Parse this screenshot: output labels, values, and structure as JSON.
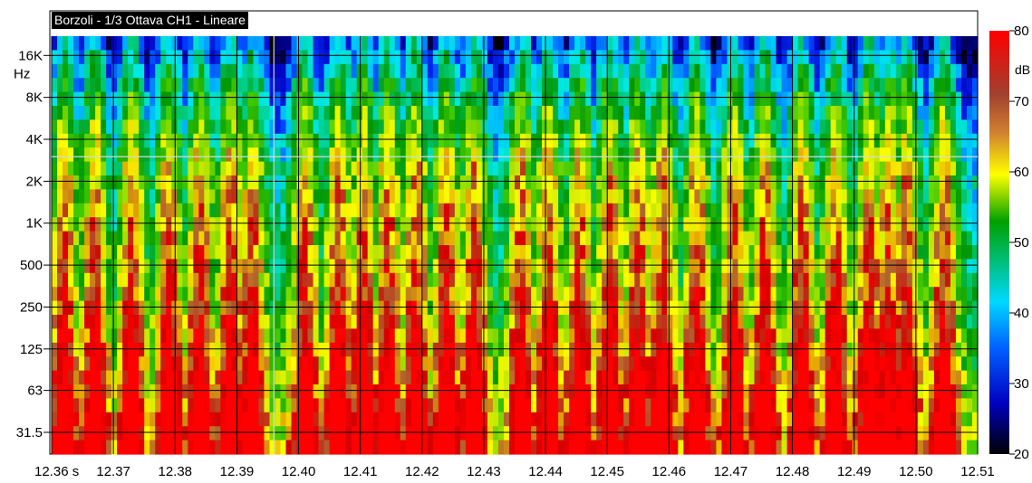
{
  "chart_data": {
    "type": "heatmap",
    "title": "Borzoli - 1/3 Ottava CH1 - Lineare",
    "x_tick_labels": [
      "12.36 s",
      "12.37",
      "12.38",
      "12.39",
      "12.40",
      "12.41",
      "12.42",
      "12.43",
      "12.44",
      "12.45",
      "12.46",
      "12.47",
      "12.48",
      "12.49",
      "12.50",
      "12.51"
    ],
    "x_range": [
      12.36,
      12.51
    ],
    "x_unit": "s",
    "y_tick_labels": [
      "16K",
      "8K",
      "4K",
      "2K",
      "1K",
      "500",
      "250",
      "125",
      "63",
      "31.5"
    ],
    "y_unit": "Hz",
    "y_scale": "log",
    "color_scale": {
      "label": "dB",
      "range": [
        20,
        80
      ],
      "ticks": [
        "80",
        "70",
        "60",
        "50",
        "40",
        "30",
        "20"
      ],
      "colors": [
        "#000000",
        "#0000c8",
        "#0044ff",
        "#00a8ff",
        "#00e8e8",
        "#00c060",
        "#009000",
        "#40d000",
        "#c8e800",
        "#ffff00",
        "#f0b000",
        "#b06030",
        "#d00000",
        "#ff0000"
      ]
    },
    "cursor_time": 12.396,
    "cursor_frequency": "3K",
    "peak_times": [
      12.362,
      12.367,
      12.373,
      12.379,
      12.384,
      12.389,
      12.3925,
      12.401,
      12.4065,
      12.4105,
      12.4145,
      12.419,
      12.424,
      12.4285,
      12.436,
      12.4405,
      12.4455,
      12.4505,
      12.455,
      12.459,
      12.4645,
      12.4705,
      12.4755,
      12.4815,
      12.487,
      12.4925,
      12.4955,
      12.4985,
      12.5045
    ]
  }
}
